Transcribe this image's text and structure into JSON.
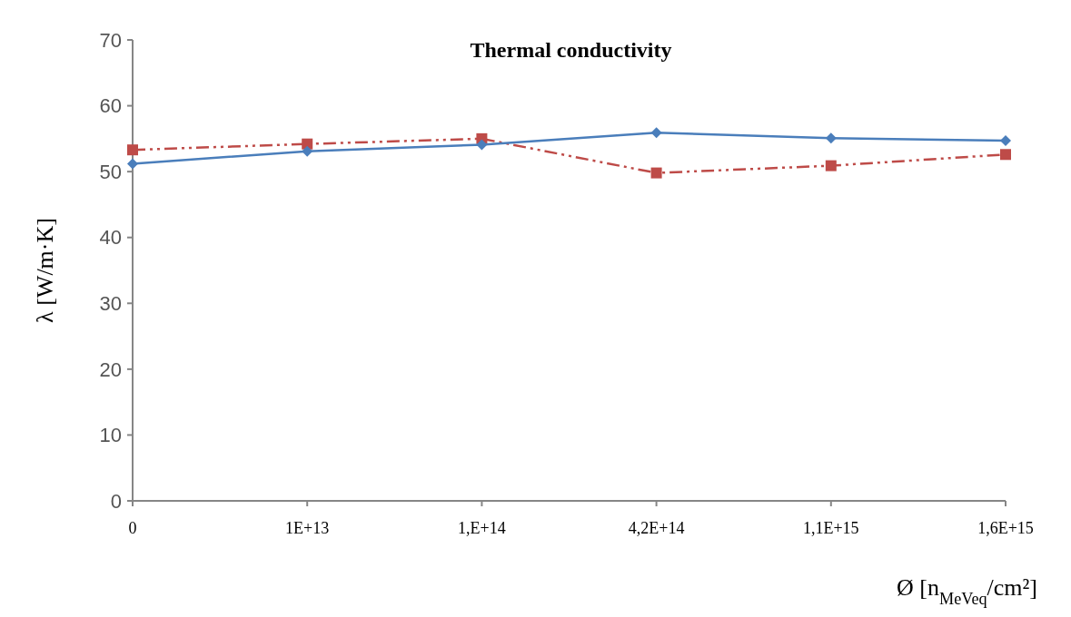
{
  "chart_data": {
    "type": "line",
    "title": "Thermal conductivity",
    "xlabel": "Ø [n$_{MeVeq}$/cm²]",
    "ylabel": "λ [W/m·K]",
    "categories": [
      "0",
      "1E+13",
      "1,E+14",
      "4,2E+14",
      "1,1E+15",
      "1,6E+15"
    ],
    "series": [
      {
        "color": "#4a7ebb",
        "marker": "diamond",
        "line_style": "solid",
        "values": [
          51.2,
          53.1,
          54.1,
          55.9,
          55.1,
          54.7
        ]
      },
      {
        "color": "#be4b48",
        "marker": "square",
        "line_style": "dashdot",
        "values": [
          53.3,
          54.2,
          55.0,
          49.8,
          50.9,
          52.6
        ]
      }
    ],
    "ylim": [
      0,
      70
    ],
    "yticks": [
      0,
      10,
      20,
      30,
      40,
      50,
      60,
      70
    ],
    "grid": false
  }
}
